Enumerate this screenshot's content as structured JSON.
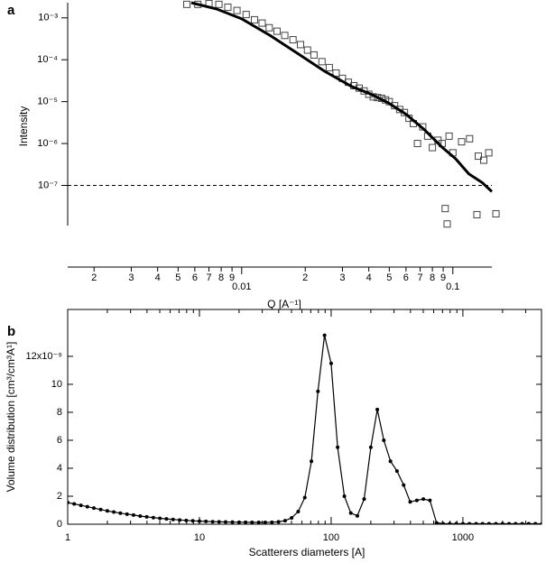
{
  "chart_data": [
    {
      "type": "scatter",
      "panel_label": "a",
      "ylabel": "Intensity",
      "xlabel": "Q [A⁻¹]",
      "log_x": true,
      "log_y": true,
      "xlim": [
        0.0015,
        0.153
      ],
      "ylim": [
        1.1e-08,
        0.0023
      ],
      "xticks": [
        {
          "value": 0.002,
          "label": "2"
        },
        {
          "value": 0.003,
          "label": "3"
        },
        {
          "value": 0.004,
          "label": "4"
        },
        {
          "value": 0.005,
          "label": "5"
        },
        {
          "value": 0.006,
          "label": "6"
        },
        {
          "value": 0.007,
          "label": "7"
        },
        {
          "value": 0.008,
          "label": "8"
        },
        {
          "value": 0.009,
          "label": "9"
        },
        0.01,
        {
          "value": 0.02,
          "label": "2"
        },
        {
          "value": 0.03,
          "label": "3"
        },
        {
          "value": 0.04,
          "label": "4"
        },
        {
          "value": 0.05,
          "label": "5"
        },
        {
          "value": 0.06,
          "label": "6"
        },
        {
          "value": 0.07,
          "label": "7"
        },
        {
          "value": 0.08,
          "label": "8"
        },
        {
          "value": 0.09,
          "label": "9"
        },
        0.1
      ],
      "yticks": [
        {
          "value": 1e-07,
          "label": "10⁻⁷"
        },
        {
          "value": 1e-06,
          "label": "10⁻⁶"
        },
        {
          "value": 1e-05,
          "label": "10⁻⁵"
        },
        {
          "value": 0.0001,
          "label": "10⁻⁴"
        },
        {
          "value": 0.001,
          "label": "10⁻³"
        }
      ],
      "reference_line": {
        "value": 1e-07,
        "style": "dashed"
      },
      "series": [
        {
          "type": "scatter",
          "color": "#444444",
          "x": [
            0.0055,
            0.0062,
            0.007,
            0.0078,
            0.0086,
            0.0095,
            0.0105,
            0.0115,
            0.0125,
            0.0135,
            0.0147,
            0.016,
            0.0175,
            0.019,
            0.0205,
            0.022,
            0.024,
            0.026,
            0.028,
            0.03,
            0.032,
            0.034,
            0.036,
            0.038,
            0.04,
            0.042,
            0.044,
            0.046,
            0.048,
            0.05,
            0.053,
            0.056,
            0.059,
            0.062,
            0.065,
            0.068,
            0.072,
            0.076,
            0.08,
            0.085,
            0.089,
            0.092,
            0.094,
            0.096,
            0.1,
            0.11,
            0.12,
            0.13,
            0.132,
            0.14,
            0.148,
            0.16
          ],
          "y": [
            0.0021,
            0.0021,
            0.0022,
            0.0021,
            0.0018,
            0.0015,
            0.0012,
            0.0009,
            0.00075,
            0.00058,
            0.00048,
            0.00038,
            0.0003,
            0.00023,
            0.00017,
            0.00013,
            9e-05,
            6.5e-05,
            4.8e-05,
            3.6e-05,
            2.9e-05,
            2.4e-05,
            2.1e-05,
            1.8e-05,
            1.5e-05,
            1.3e-05,
            1.25e-05,
            1.2e-05,
            1.1e-05,
            1e-05,
            8e-06,
            6.5e-06,
            5.5e-06,
            4e-06,
            3e-06,
            1e-06,
            2.5e-06,
            1.5e-06,
            8e-07,
            1.2e-06,
            1e-06,
            2.8e-08,
            1.2e-08,
            1.5e-06,
            6e-07,
            1.1e-06,
            1.3e-06,
            2e-08,
            5e-07,
            4e-07,
            6e-07,
            2.1e-08
          ]
        },
        {
          "type": "line",
          "color": "#000000",
          "x": [
            0.00577,
            0.00759,
            0.01,
            0.0137,
            0.0184,
            0.0247,
            0.0332,
            0.0404,
            0.0492,
            0.06,
            0.073,
            0.0889,
            0.103,
            0.119,
            0.138,
            0.153
          ],
          "y": [
            0.0023,
            0.00163,
            0.00095,
            0.000375,
            0.000141,
            5.3e-05,
            2.3e-05,
            1.55e-05,
            9.5e-06,
            5e-06,
            2.19e-06,
            8.2e-07,
            4.35e-07,
            1.89e-07,
            1.16e-07,
            7.1e-08
          ]
        }
      ]
    },
    {
      "type": "line",
      "panel_label": "b",
      "ylabel": "Volume distribution [cm³/cm³A¹]",
      "xlabel": "Scatterers diameters [A]",
      "log_x": true,
      "color": "#000000",
      "xlim": [
        1,
        3950
      ],
      "ylim": [
        0,
        15.35
      ],
      "xticks": [
        1,
        10,
        100,
        1000
      ],
      "xminorticks": [
        2,
        3,
        4,
        5,
        6,
        7,
        8,
        9,
        20,
        30,
        40,
        50,
        60,
        70,
        80,
        90,
        200,
        300,
        400,
        500,
        600,
        700,
        800,
        900,
        2000,
        3000
      ],
      "yticks": [
        0,
        2,
        4,
        6,
        8,
        10,
        {
          "value": 12,
          "label": "12x10⁻⁹"
        }
      ],
      "x": [
        1,
        1.12,
        1.26,
        1.41,
        1.58,
        1.78,
        2,
        2.24,
        2.51,
        2.82,
        3.16,
        3.55,
        3.98,
        4.47,
        5.01,
        5.62,
        6.31,
        7.08,
        7.94,
        8.91,
        10,
        11.2,
        12.6,
        14.1,
        15.8,
        17.8,
        20,
        22.4,
        25.1,
        28.2,
        31.6,
        35.5,
        39.8,
        44.7,
        50.1,
        56.2,
        63.1,
        70.8,
        79.4,
        89.1,
        100,
        112,
        126,
        141,
        158,
        178,
        200,
        224,
        251,
        282,
        316,
        355,
        398,
        447,
        501,
        562,
        631,
        708,
        794,
        891,
        1000,
        1120,
        1260,
        1410,
        1580,
        1780,
        2000,
        2240,
        2510,
        2820,
        3160,
        3550,
        3980,
        4470
      ],
      "values": [
        1.55,
        1.45,
        1.35,
        1.25,
        1.15,
        1.05,
        0.95,
        0.87,
        0.79,
        0.72,
        0.65,
        0.58,
        0.52,
        0.47,
        0.42,
        0.38,
        0.34,
        0.3,
        0.27,
        0.24,
        0.22,
        0.2,
        0.18,
        0.17,
        0.16,
        0.15,
        0.14,
        0.14,
        0.13,
        0.13,
        0.13,
        0.14,
        0.17,
        0.25,
        0.45,
        0.9,
        1.9,
        4.5,
        9.5,
        13.5,
        11.5,
        5.5,
        2,
        0.8,
        0.6,
        1.8,
        5.5,
        8.2,
        6,
        4.5,
        3.8,
        2.8,
        1.6,
        1.7,
        1.8,
        1.7,
        0.1,
        0.03,
        0.03,
        0.03,
        0.03,
        0.03,
        0.03,
        0.03,
        0.03,
        0.03,
        0.03,
        0.03,
        0.03,
        0.03,
        0.03,
        0.03,
        0.03,
        0.03
      ]
    }
  ]
}
